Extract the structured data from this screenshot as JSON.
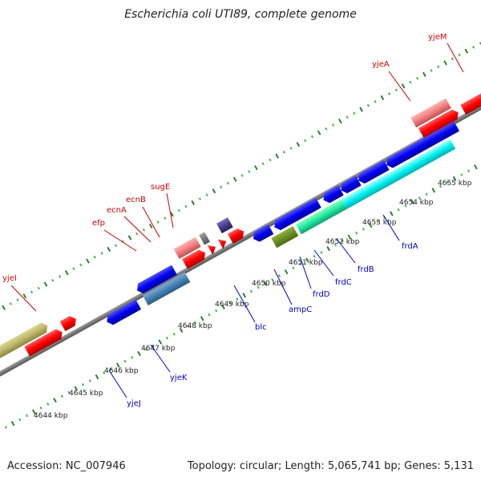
{
  "title": "Escherichia coli UTI89, complete genome",
  "footer": {
    "accession": "Accession: NC_007946",
    "summary": "Topology: circular; Length: 5,065,741 bp; Genes: 5,131"
  },
  "colors": {
    "backbone": "#8a8a8a",
    "tick_major": "#2e7d32",
    "tick_minor": "#4caf50",
    "label_forward": "#cc0000",
    "label_reverse": "#0000cc"
  },
  "tick_labels": [
    "4644 kbp",
    "4645 kbp",
    "4646 kbp",
    "4647 kbp",
    "4648 kbp",
    "4649 kbp",
    "4650 kbp",
    "4651 kbp",
    "4652 kbp",
    "4653 kbp",
    "4654 kbp",
    "4655 kbp"
  ],
  "gene_labels": {
    "yjeM": "yjeM",
    "yjeA": "yjeA",
    "sugE": "sugE",
    "ecnB": "ecnB",
    "ecnA": "ecnA",
    "efp": "efp",
    "yjeI": "yjeI",
    "blc": "blc",
    "ampC": "ampC",
    "frdD": "frdD",
    "frdC": "frdC",
    "frdB": "frdB",
    "frdA": "frdA",
    "yjeK": "yjeK",
    "yjeJ": "yjeJ"
  }
}
